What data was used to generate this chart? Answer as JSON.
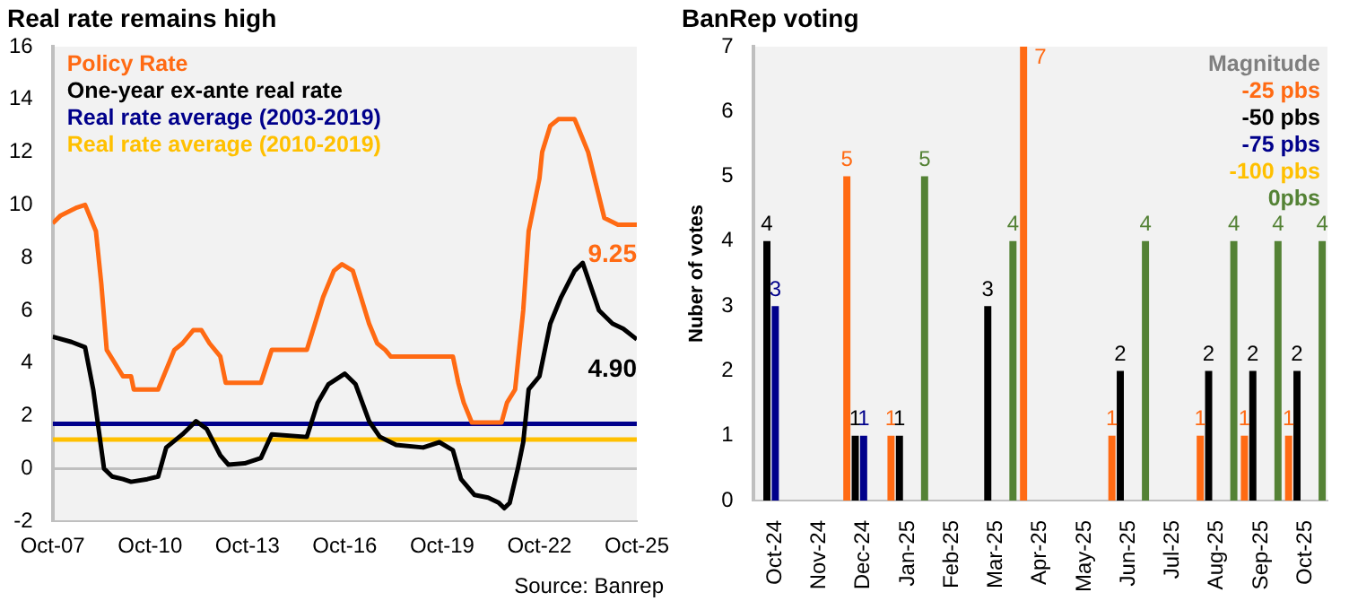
{
  "chart_data": [
    {
      "type": "line",
      "title": "Real rate remains high",
      "xlim": [
        "2007-10",
        "2025-10"
      ],
      "xticks": [
        {
          "value": "2007-10",
          "label": "Oct-07"
        },
        {
          "value": "2010-10",
          "label": "Oct-10"
        },
        {
          "value": "2013-10",
          "label": "Oct-13"
        },
        {
          "value": "2016-10",
          "label": "Oct-16"
        },
        {
          "value": "2019-10",
          "label": "Oct-19"
        },
        {
          "value": "2022-10",
          "label": "Oct-22"
        },
        {
          "value": "2025-10",
          "label": "Oct-25"
        }
      ],
      "ylim": [
        -2,
        16
      ],
      "yticks": [
        -2,
        0,
        2,
        4,
        6,
        8,
        10,
        12,
        14,
        16
      ],
      "grid": false,
      "legend": "top left",
      "marker": "none",
      "line_style": "solid",
      "ref_lines": [
        {
          "axis": "y",
          "value": 0,
          "color": "#bfbfbf"
        }
      ],
      "series": [
        {
          "name": "Policy Rate",
          "color": "#ff6a13",
          "x": [
            "2007-10",
            "2008-01",
            "2008-04",
            "2008-07",
            "2008-10",
            "2009-02",
            "2009-04",
            "2009-06",
            "2009-09",
            "2009-12",
            "2010-03",
            "2010-04",
            "2011-01",
            "2011-07",
            "2011-10",
            "2012-02",
            "2012-05",
            "2012-08",
            "2012-12",
            "2013-02",
            "2014-03",
            "2014-07",
            "2015-08",
            "2015-11",
            "2016-02",
            "2016-06",
            "2016-09",
            "2017-01",
            "2017-04",
            "2017-07",
            "2017-10",
            "2018-01",
            "2018-03",
            "2020-02",
            "2020-04",
            "2020-06",
            "2020-09",
            "2021-08",
            "2021-10",
            "2022-01",
            "2022-04",
            "2022-06",
            "2022-10",
            "2022-11",
            "2023-02",
            "2023-05",
            "2023-11",
            "2024-01",
            "2024-04",
            "2024-07",
            "2024-10",
            "2025-03",
            "2025-10"
          ],
          "values": [
            9.3,
            9.6,
            9.75,
            9.9,
            10.0,
            9.0,
            7.0,
            4.5,
            4.0,
            3.5,
            3.5,
            3.0,
            3.0,
            4.5,
            4.75,
            5.25,
            5.25,
            4.75,
            4.25,
            3.25,
            3.25,
            4.5,
            4.5,
            5.5,
            6.5,
            7.5,
            7.75,
            7.5,
            6.5,
            5.5,
            4.75,
            4.5,
            4.25,
            4.25,
            3.25,
            2.5,
            1.75,
            1.75,
            2.5,
            3.0,
            6.0,
            9.0,
            11.0,
            12.0,
            13.0,
            13.25,
            13.25,
            12.75,
            12.0,
            10.75,
            9.5,
            9.25,
            9.25
          ]
        },
        {
          "name": "One-year ex-ante real rate",
          "color": "#000000",
          "x": [
            "2007-10",
            "2008-05",
            "2008-10",
            "2009-01",
            "2009-03",
            "2009-05",
            "2009-08",
            "2009-12",
            "2010-03",
            "2010-09",
            "2011-01",
            "2011-04",
            "2011-10",
            "2012-03",
            "2012-07",
            "2012-12",
            "2013-03",
            "2013-09",
            "2014-03",
            "2014-07",
            "2015-08",
            "2015-12",
            "2016-04",
            "2016-10",
            "2017-02",
            "2017-07",
            "2017-11",
            "2018-05",
            "2019-03",
            "2019-09",
            "2020-02",
            "2020-05",
            "2020-10",
            "2021-03",
            "2021-07",
            "2021-09",
            "2021-11",
            "2022-02",
            "2022-04",
            "2022-06",
            "2022-10",
            "2023-02",
            "2023-06",
            "2023-11",
            "2024-02",
            "2024-04",
            "2024-08",
            "2025-01",
            "2025-05",
            "2025-10"
          ],
          "values": [
            5.0,
            4.8,
            4.6,
            3.0,
            1.5,
            0.0,
            -0.3,
            -0.4,
            -0.5,
            -0.4,
            -0.3,
            0.8,
            1.3,
            1.8,
            1.5,
            0.5,
            0.15,
            0.2,
            0.4,
            1.3,
            1.2,
            2.5,
            3.2,
            3.6,
            3.2,
            1.8,
            1.2,
            0.9,
            0.8,
            1.0,
            0.7,
            -0.4,
            -1.0,
            -1.1,
            -1.3,
            -1.5,
            -1.3,
            0.0,
            1.0,
            3.0,
            3.5,
            5.5,
            6.5,
            7.5,
            7.8,
            7.2,
            6.0,
            5.5,
            5.3,
            4.9
          ]
        },
        {
          "name": "Real rate average (2003-2019)",
          "color": "#00008b",
          "x": [
            "2007-10",
            "2025-10"
          ],
          "values": [
            1.7,
            1.7
          ]
        },
        {
          "name": "Real rate average (2010-2019)",
          "color": "#ffc000",
          "x": [
            "2007-10",
            "2025-10"
          ],
          "values": [
            1.1,
            1.1
          ]
        }
      ],
      "annotations": [
        {
          "text": "9.25",
          "x": "2025-10",
          "y": 9.25
        },
        {
          "text": "4.90",
          "x": "2025-10",
          "y": 4.9
        },
        "Source: Banrep"
      ]
    },
    {
      "type": "bar",
      "title": "BanRep voting",
      "ylabel": "Nuber of votes",
      "legend_title": "Magnitude",
      "legend": "top right",
      "grid": false,
      "data_labels": true,
      "categories": [
        "Oct-24",
        "Nov-24",
        "Dec-24",
        "Jan-25",
        "Feb-25",
        "Mar-25",
        "Apr-25",
        "May-25",
        "Jun-25",
        "Jul-25",
        "Aug-25",
        "Sep-25",
        "Oct-25"
      ],
      "ylim": [
        0,
        7
      ],
      "yticks": [
        0,
        1,
        2,
        3,
        4,
        5,
        6,
        7
      ],
      "series": [
        {
          "name": "-25 pbs",
          "color": "#ff6a13",
          "values": [
            null,
            null,
            5,
            1,
            null,
            null,
            7,
            null,
            1,
            null,
            1,
            1,
            1
          ]
        },
        {
          "name": "-50 pbs",
          "color": "#000000",
          "values": [
            4,
            null,
            1,
            1,
            null,
            3,
            null,
            null,
            2,
            null,
            2,
            2,
            2
          ]
        },
        {
          "name": "-75 pbs",
          "color": "#00008b",
          "values": [
            3,
            null,
            1,
            null,
            null,
            null,
            null,
            null,
            null,
            null,
            null,
            null,
            null
          ]
        },
        {
          "name": "-100 pbs",
          "color": "#ffc000",
          "values": [
            null,
            null,
            null,
            null,
            null,
            null,
            null,
            null,
            null,
            null,
            null,
            null,
            null
          ]
        },
        {
          "name": "0pbs",
          "color": "#548235",
          "values": [
            null,
            null,
            null,
            5,
            null,
            4,
            null,
            null,
            4,
            null,
            4,
            4,
            4
          ]
        }
      ]
    }
  ]
}
